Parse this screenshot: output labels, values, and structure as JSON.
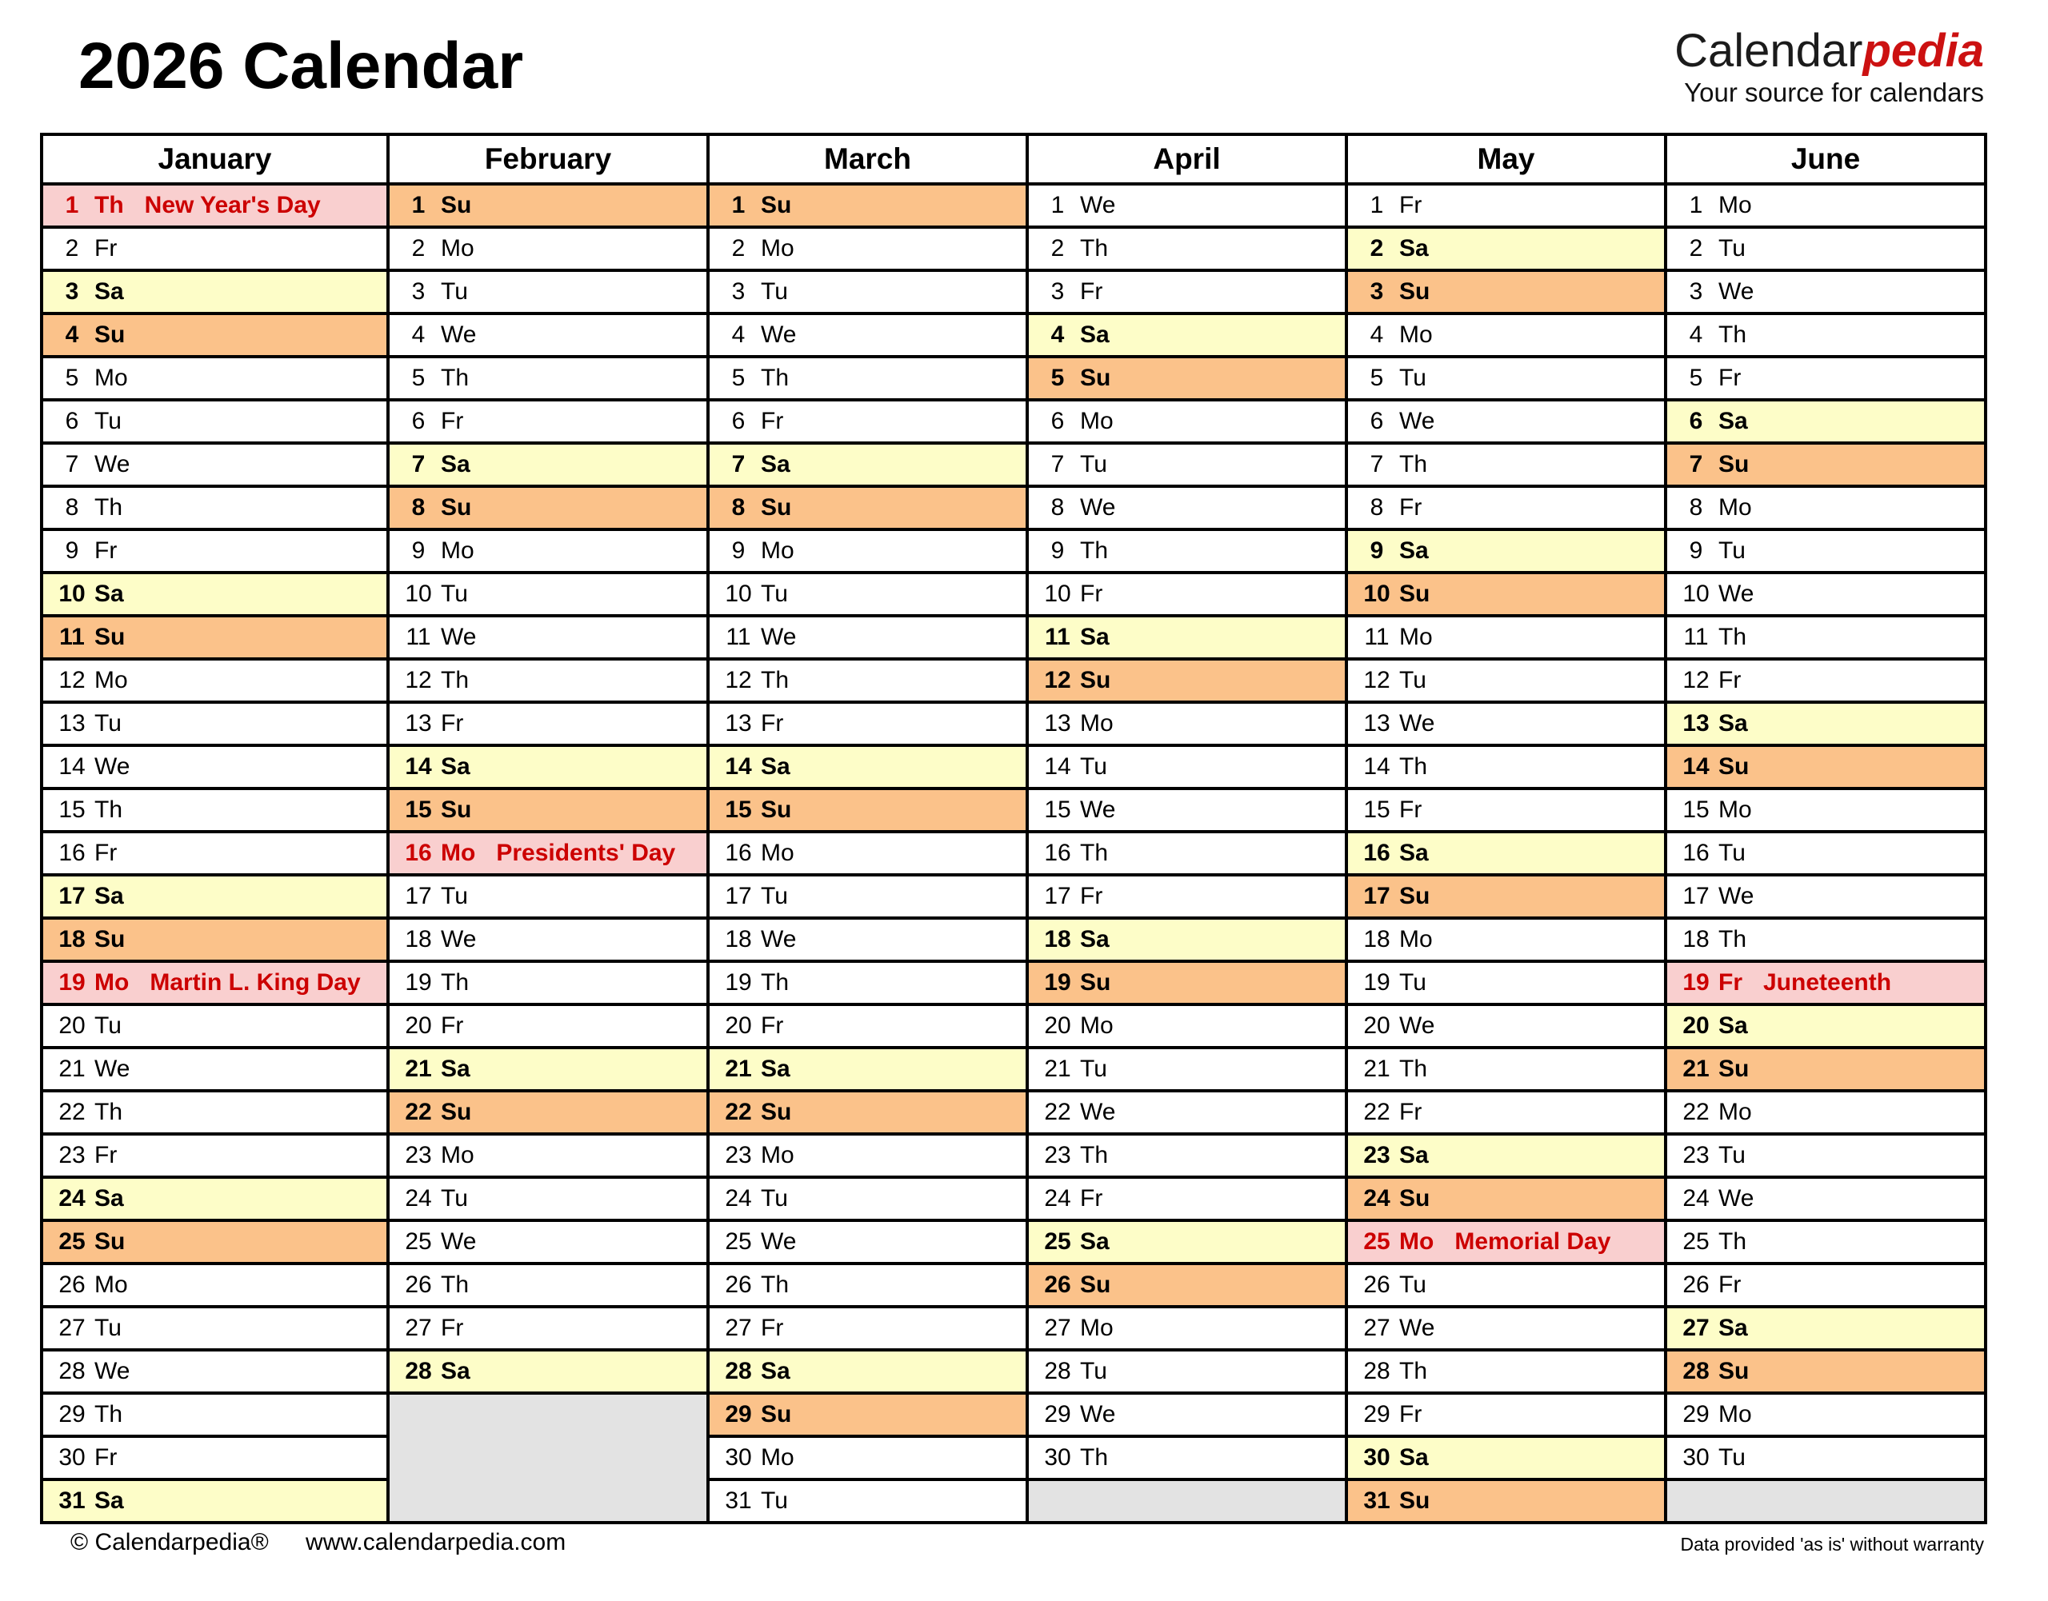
{
  "title": "2026 Calendar",
  "logo": {
    "brand_black": "Calendar",
    "brand_red": "pedia",
    "tagline": "Your source for calendars"
  },
  "footer": {
    "copyright": "© Calendarpedia®",
    "website": "www.calendarpedia.com",
    "disclaimer": "Data provided 'as is' without warranty"
  },
  "colors": {
    "saturday": "#FDFDC8",
    "sunday": "#FBC28A",
    "holiday_bg": "#F9CFCF",
    "holiday_text": "#CC0000",
    "empty_cell": "#E3E3E3",
    "logo_red": "#CC1111",
    "border": "#000000"
  },
  "rows": 31,
  "months": [
    {
      "name": "January",
      "days": [
        {
          "d": 1,
          "wd": "Th",
          "holiday": "New Year's Day"
        },
        {
          "d": 2,
          "wd": "Fr"
        },
        {
          "d": 3,
          "wd": "Sa"
        },
        {
          "d": 4,
          "wd": "Su"
        },
        {
          "d": 5,
          "wd": "Mo"
        },
        {
          "d": 6,
          "wd": "Tu"
        },
        {
          "d": 7,
          "wd": "We"
        },
        {
          "d": 8,
          "wd": "Th"
        },
        {
          "d": 9,
          "wd": "Fr"
        },
        {
          "d": 10,
          "wd": "Sa"
        },
        {
          "d": 11,
          "wd": "Su"
        },
        {
          "d": 12,
          "wd": "Mo"
        },
        {
          "d": 13,
          "wd": "Tu"
        },
        {
          "d": 14,
          "wd": "We"
        },
        {
          "d": 15,
          "wd": "Th"
        },
        {
          "d": 16,
          "wd": "Fr"
        },
        {
          "d": 17,
          "wd": "Sa"
        },
        {
          "d": 18,
          "wd": "Su"
        },
        {
          "d": 19,
          "wd": "Mo",
          "holiday": "Martin L. King Day"
        },
        {
          "d": 20,
          "wd": "Tu"
        },
        {
          "d": 21,
          "wd": "We"
        },
        {
          "d": 22,
          "wd": "Th"
        },
        {
          "d": 23,
          "wd": "Fr"
        },
        {
          "d": 24,
          "wd": "Sa"
        },
        {
          "d": 25,
          "wd": "Su"
        },
        {
          "d": 26,
          "wd": "Mo"
        },
        {
          "d": 27,
          "wd": "Tu"
        },
        {
          "d": 28,
          "wd": "We"
        },
        {
          "d": 29,
          "wd": "Th"
        },
        {
          "d": 30,
          "wd": "Fr"
        },
        {
          "d": 31,
          "wd": "Sa"
        }
      ]
    },
    {
      "name": "February",
      "days": [
        {
          "d": 1,
          "wd": "Su"
        },
        {
          "d": 2,
          "wd": "Mo"
        },
        {
          "d": 3,
          "wd": "Tu"
        },
        {
          "d": 4,
          "wd": "We"
        },
        {
          "d": 5,
          "wd": "Th"
        },
        {
          "d": 6,
          "wd": "Fr"
        },
        {
          "d": 7,
          "wd": "Sa"
        },
        {
          "d": 8,
          "wd": "Su"
        },
        {
          "d": 9,
          "wd": "Mo"
        },
        {
          "d": 10,
          "wd": "Tu"
        },
        {
          "d": 11,
          "wd": "We"
        },
        {
          "d": 12,
          "wd": "Th"
        },
        {
          "d": 13,
          "wd": "Fr"
        },
        {
          "d": 14,
          "wd": "Sa"
        },
        {
          "d": 15,
          "wd": "Su"
        },
        {
          "d": 16,
          "wd": "Mo",
          "holiday": "Presidents' Day"
        },
        {
          "d": 17,
          "wd": "Tu"
        },
        {
          "d": 18,
          "wd": "We"
        },
        {
          "d": 19,
          "wd": "Th"
        },
        {
          "d": 20,
          "wd": "Fr"
        },
        {
          "d": 21,
          "wd": "Sa"
        },
        {
          "d": 22,
          "wd": "Su"
        },
        {
          "d": 23,
          "wd": "Mo"
        },
        {
          "d": 24,
          "wd": "Tu"
        },
        {
          "d": 25,
          "wd": "We"
        },
        {
          "d": 26,
          "wd": "Th"
        },
        {
          "d": 27,
          "wd": "Fr"
        },
        {
          "d": 28,
          "wd": "Sa"
        }
      ]
    },
    {
      "name": "March",
      "days": [
        {
          "d": 1,
          "wd": "Su"
        },
        {
          "d": 2,
          "wd": "Mo"
        },
        {
          "d": 3,
          "wd": "Tu"
        },
        {
          "d": 4,
          "wd": "We"
        },
        {
          "d": 5,
          "wd": "Th"
        },
        {
          "d": 6,
          "wd": "Fr"
        },
        {
          "d": 7,
          "wd": "Sa"
        },
        {
          "d": 8,
          "wd": "Su"
        },
        {
          "d": 9,
          "wd": "Mo"
        },
        {
          "d": 10,
          "wd": "Tu"
        },
        {
          "d": 11,
          "wd": "We"
        },
        {
          "d": 12,
          "wd": "Th"
        },
        {
          "d": 13,
          "wd": "Fr"
        },
        {
          "d": 14,
          "wd": "Sa"
        },
        {
          "d": 15,
          "wd": "Su"
        },
        {
          "d": 16,
          "wd": "Mo"
        },
        {
          "d": 17,
          "wd": "Tu"
        },
        {
          "d": 18,
          "wd": "We"
        },
        {
          "d": 19,
          "wd": "Th"
        },
        {
          "d": 20,
          "wd": "Fr"
        },
        {
          "d": 21,
          "wd": "Sa"
        },
        {
          "d": 22,
          "wd": "Su"
        },
        {
          "d": 23,
          "wd": "Mo"
        },
        {
          "d": 24,
          "wd": "Tu"
        },
        {
          "d": 25,
          "wd": "We"
        },
        {
          "d": 26,
          "wd": "Th"
        },
        {
          "d": 27,
          "wd": "Fr"
        },
        {
          "d": 28,
          "wd": "Sa"
        },
        {
          "d": 29,
          "wd": "Su"
        },
        {
          "d": 30,
          "wd": "Mo"
        },
        {
          "d": 31,
          "wd": "Tu"
        }
      ]
    },
    {
      "name": "April",
      "days": [
        {
          "d": 1,
          "wd": "We"
        },
        {
          "d": 2,
          "wd": "Th"
        },
        {
          "d": 3,
          "wd": "Fr"
        },
        {
          "d": 4,
          "wd": "Sa"
        },
        {
          "d": 5,
          "wd": "Su"
        },
        {
          "d": 6,
          "wd": "Mo"
        },
        {
          "d": 7,
          "wd": "Tu"
        },
        {
          "d": 8,
          "wd": "We"
        },
        {
          "d": 9,
          "wd": "Th"
        },
        {
          "d": 10,
          "wd": "Fr"
        },
        {
          "d": 11,
          "wd": "Sa"
        },
        {
          "d": 12,
          "wd": "Su"
        },
        {
          "d": 13,
          "wd": "Mo"
        },
        {
          "d": 14,
          "wd": "Tu"
        },
        {
          "d": 15,
          "wd": "We"
        },
        {
          "d": 16,
          "wd": "Th"
        },
        {
          "d": 17,
          "wd": "Fr"
        },
        {
          "d": 18,
          "wd": "Sa"
        },
        {
          "d": 19,
          "wd": "Su"
        },
        {
          "d": 20,
          "wd": "Mo"
        },
        {
          "d": 21,
          "wd": "Tu"
        },
        {
          "d": 22,
          "wd": "We"
        },
        {
          "d": 23,
          "wd": "Th"
        },
        {
          "d": 24,
          "wd": "Fr"
        },
        {
          "d": 25,
          "wd": "Sa"
        },
        {
          "d": 26,
          "wd": "Su"
        },
        {
          "d": 27,
          "wd": "Mo"
        },
        {
          "d": 28,
          "wd": "Tu"
        },
        {
          "d": 29,
          "wd": "We"
        },
        {
          "d": 30,
          "wd": "Th"
        }
      ]
    },
    {
      "name": "May",
      "days": [
        {
          "d": 1,
          "wd": "Fr"
        },
        {
          "d": 2,
          "wd": "Sa"
        },
        {
          "d": 3,
          "wd": "Su"
        },
        {
          "d": 4,
          "wd": "Mo"
        },
        {
          "d": 5,
          "wd": "Tu"
        },
        {
          "d": 6,
          "wd": "We"
        },
        {
          "d": 7,
          "wd": "Th"
        },
        {
          "d": 8,
          "wd": "Fr"
        },
        {
          "d": 9,
          "wd": "Sa"
        },
        {
          "d": 10,
          "wd": "Su"
        },
        {
          "d": 11,
          "wd": "Mo"
        },
        {
          "d": 12,
          "wd": "Tu"
        },
        {
          "d": 13,
          "wd": "We"
        },
        {
          "d": 14,
          "wd": "Th"
        },
        {
          "d": 15,
          "wd": "Fr"
        },
        {
          "d": 16,
          "wd": "Sa"
        },
        {
          "d": 17,
          "wd": "Su"
        },
        {
          "d": 18,
          "wd": "Mo"
        },
        {
          "d": 19,
          "wd": "Tu"
        },
        {
          "d": 20,
          "wd": "We"
        },
        {
          "d": 21,
          "wd": "Th"
        },
        {
          "d": 22,
          "wd": "Fr"
        },
        {
          "d": 23,
          "wd": "Sa"
        },
        {
          "d": 24,
          "wd": "Su"
        },
        {
          "d": 25,
          "wd": "Mo",
          "holiday": "Memorial Day"
        },
        {
          "d": 26,
          "wd": "Tu"
        },
        {
          "d": 27,
          "wd": "We"
        },
        {
          "d": 28,
          "wd": "Th"
        },
        {
          "d": 29,
          "wd": "Fr"
        },
        {
          "d": 30,
          "wd": "Sa"
        },
        {
          "d": 31,
          "wd": "Su"
        }
      ]
    },
    {
      "name": "June",
      "days": [
        {
          "d": 1,
          "wd": "Mo"
        },
        {
          "d": 2,
          "wd": "Tu"
        },
        {
          "d": 3,
          "wd": "We"
        },
        {
          "d": 4,
          "wd": "Th"
        },
        {
          "d": 5,
          "wd": "Fr"
        },
        {
          "d": 6,
          "wd": "Sa"
        },
        {
          "d": 7,
          "wd": "Su"
        },
        {
          "d": 8,
          "wd": "Mo"
        },
        {
          "d": 9,
          "wd": "Tu"
        },
        {
          "d": 10,
          "wd": "We"
        },
        {
          "d": 11,
          "wd": "Th"
        },
        {
          "d": 12,
          "wd": "Fr"
        },
        {
          "d": 13,
          "wd": "Sa"
        },
        {
          "d": 14,
          "wd": "Su"
        },
        {
          "d": 15,
          "wd": "Mo"
        },
        {
          "d": 16,
          "wd": "Tu"
        },
        {
          "d": 17,
          "wd": "We"
        },
        {
          "d": 18,
          "wd": "Th"
        },
        {
          "d": 19,
          "wd": "Fr",
          "holiday": "Juneteenth"
        },
        {
          "d": 20,
          "wd": "Sa"
        },
        {
          "d": 21,
          "wd": "Su"
        },
        {
          "d": 22,
          "wd": "Mo"
        },
        {
          "d": 23,
          "wd": "Tu"
        },
        {
          "d": 24,
          "wd": "We"
        },
        {
          "d": 25,
          "wd": "Th"
        },
        {
          "d": 26,
          "wd": "Fr"
        },
        {
          "d": 27,
          "wd": "Sa"
        },
        {
          "d": 28,
          "wd": "Su"
        },
        {
          "d": 29,
          "wd": "Mo"
        },
        {
          "d": 30,
          "wd": "Tu"
        }
      ]
    }
  ]
}
